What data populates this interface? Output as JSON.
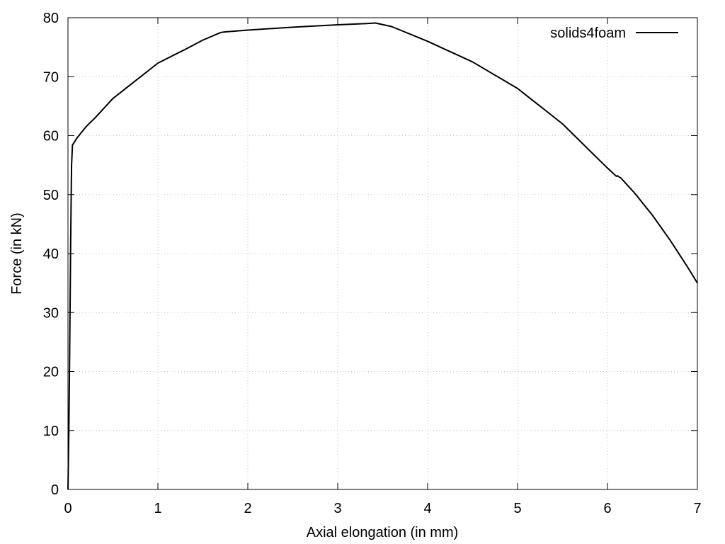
{
  "chart_data": {
    "type": "line",
    "title": "",
    "xlabel": "Axial elongation (in mm)",
    "ylabel": "Force (in kN)",
    "xlim": [
      0,
      7
    ],
    "ylim": [
      0,
      80
    ],
    "xticks": [
      0,
      1,
      2,
      3,
      4,
      5,
      6,
      7
    ],
    "yticks": [
      0,
      10,
      20,
      30,
      40,
      50,
      60,
      70,
      80
    ],
    "grid": true,
    "legend_position": "top-right",
    "series": [
      {
        "name": "solids4foam",
        "color": "#000000",
        "x": [
          0,
          0.01,
          0.02,
          0.03,
          0.04,
          0.05,
          0.1,
          0.2,
          0.3,
          0.5,
          0.7,
          1.0,
          1.3,
          1.5,
          1.7,
          1.75,
          2.0,
          2.5,
          3.0,
          3.3,
          3.42,
          3.6,
          4.0,
          4.5,
          5.0,
          5.5,
          6.0,
          6.1,
          6.11,
          6.15,
          6.3,
          6.5,
          6.7,
          6.9,
          7.0
        ],
        "y": [
          0,
          10,
          25,
          42,
          55,
          58.4,
          59.6,
          61.5,
          63,
          66.3,
          68.7,
          72.3,
          74.6,
          76.2,
          77.5,
          77.6,
          77.9,
          78.4,
          78.8,
          79.0,
          79.1,
          78.5,
          76.0,
          72.5,
          68.0,
          62.0,
          54.5,
          53.1,
          53.2,
          52.8,
          50.3,
          46.5,
          42.2,
          37.5,
          35.0
        ]
      }
    ]
  }
}
